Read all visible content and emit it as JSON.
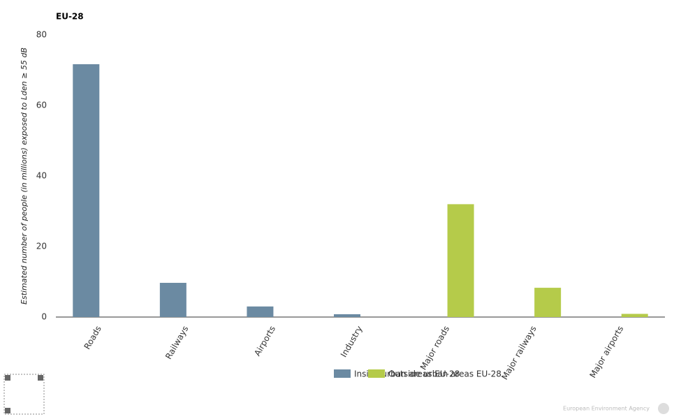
{
  "chart_data": {
    "type": "bar",
    "title": "EU-28",
    "y_label": "Estimated number of people (in millions) exposed to Lden ≥ 55 dB",
    "categories": [
      "Roads",
      "Railways",
      "Airports",
      "Industry",
      "Major roads",
      "Major railways",
      "Major airports"
    ],
    "series": [
      {
        "name": "Inside urban areas EU-28",
        "color": "#6b8aa2",
        "values": [
          71.7,
          9.7,
          3.0,
          0.8,
          null,
          null,
          null
        ]
      },
      {
        "name": "Outside urban areas EU-28",
        "color": "#b5cb4a",
        "values": [
          null,
          null,
          null,
          null,
          32.0,
          8.3,
          0.9
        ]
      }
    ],
    "ylim": [
      0,
      80
    ],
    "yticks": [
      0,
      20,
      40,
      60,
      80
    ],
    "grid": false,
    "credit": "European Environment Agency"
  }
}
